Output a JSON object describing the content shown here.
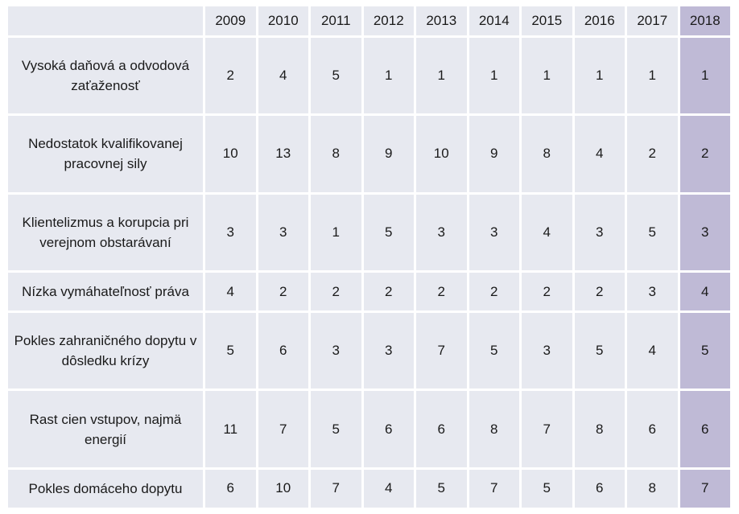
{
  "chart_data": {
    "type": "table",
    "columns": [
      "2009",
      "2010",
      "2011",
      "2012",
      "2013",
      "2014",
      "2015",
      "2016",
      "2017",
      "2018"
    ],
    "highlighted_column": "2018",
    "rows": [
      {
        "label": "Vysoká daňová a odvodová zaťaženosť",
        "values": [
          2,
          4,
          5,
          1,
          1,
          1,
          1,
          1,
          1,
          1
        ]
      },
      {
        "label": "Nedostatok kvalifikovanej pracovnej sily",
        "values": [
          10,
          13,
          8,
          9,
          10,
          9,
          8,
          4,
          2,
          2
        ]
      },
      {
        "label": "Klientelizmus a korupcia pri verejnom obstarávaní",
        "values": [
          3,
          3,
          1,
          5,
          3,
          3,
          4,
          3,
          5,
          3
        ]
      },
      {
        "label": "Nízka vymáhateľnosť práva",
        "values": [
          4,
          2,
          2,
          2,
          2,
          2,
          2,
          2,
          3,
          4
        ]
      },
      {
        "label": "Pokles  zahraničného dopytu v dôsledku krízy",
        "values": [
          5,
          6,
          3,
          3,
          7,
          5,
          3,
          5,
          4,
          5
        ]
      },
      {
        "label": "Rast cien vstupov, najmä energií",
        "values": [
          11,
          7,
          5,
          6,
          6,
          8,
          7,
          8,
          6,
          6
        ]
      },
      {
        "label": "Pokles domáceho dopytu",
        "values": [
          6,
          10,
          7,
          4,
          5,
          7,
          5,
          6,
          8,
          7
        ]
      }
    ]
  },
  "colors": {
    "cell_background": "#e7e9f0",
    "highlight_background": "#bfbad6",
    "text": "#1a1a1a"
  }
}
